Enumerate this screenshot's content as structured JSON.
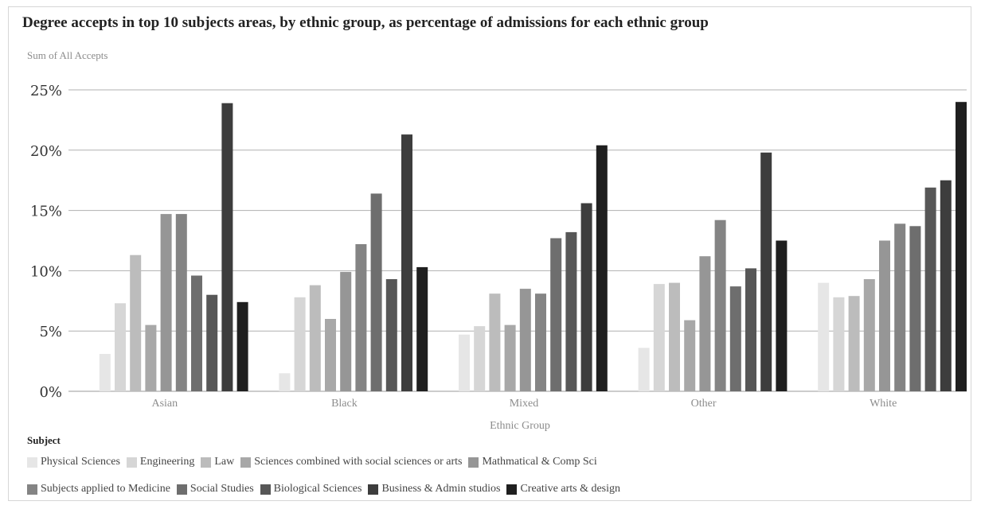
{
  "chart_data": {
    "type": "bar",
    "title": "Degree accepts in top 10 subjects areas, by ethnic group, as percentage of admissions for each ethnic group",
    "subtitle": "Sum of All Accepts",
    "xlabel": "Ethnic Group",
    "ylabel": "",
    "ylim": [
      0,
      25
    ],
    "y_ticks": [
      "0%",
      "5%",
      "10%",
      "15%",
      "20%",
      "25%"
    ],
    "grid": true,
    "legend_title": "Subject",
    "legend_position": "bottom-left",
    "categories": [
      "Asian",
      "Black",
      "Mixed",
      "Other",
      "White"
    ],
    "series": [
      {
        "name": "Physical Sciences",
        "color": "#e6e6e6",
        "values": [
          3.1,
          1.5,
          4.7,
          3.6,
          9.0
        ]
      },
      {
        "name": "Engineering",
        "color": "#d6d6d6",
        "values": [
          7.3,
          7.8,
          5.4,
          8.9,
          7.8
        ]
      },
      {
        "name": "Law",
        "color": "#bcbcbc",
        "values": [
          11.3,
          8.8,
          8.1,
          9.0,
          7.9
        ]
      },
      {
        "name": "Sciences combined with social sciences or arts",
        "color": "#a8a8a8",
        "values": [
          5.5,
          6.0,
          5.5,
          5.9,
          9.3
        ]
      },
      {
        "name": "Mathmatical & Comp Sci",
        "color": "#969696",
        "values": [
          14.7,
          9.9,
          8.5,
          11.2,
          12.5
        ]
      },
      {
        "name": "Subjects applied to Medicine",
        "color": "#848484",
        "values": [
          14.7,
          12.2,
          8.1,
          14.2,
          13.9
        ]
      },
      {
        "name": "Social Studies",
        "color": "#6e6e6e",
        "values": [
          9.6,
          16.4,
          12.7,
          8.7,
          13.7
        ]
      },
      {
        "name": "Biological Sciences",
        "color": "#575757",
        "values": [
          8.0,
          9.3,
          13.2,
          10.2,
          16.9
        ]
      },
      {
        "name": "Business & Admin studios",
        "color": "#3d3d3d",
        "values": [
          23.9,
          21.3,
          15.6,
          19.8,
          17.5
        ]
      },
      {
        "name": "Creative arts & design",
        "color": "#1f1f1f",
        "values": [
          7.4,
          10.3,
          20.4,
          12.5,
          24.0
        ]
      }
    ]
  }
}
